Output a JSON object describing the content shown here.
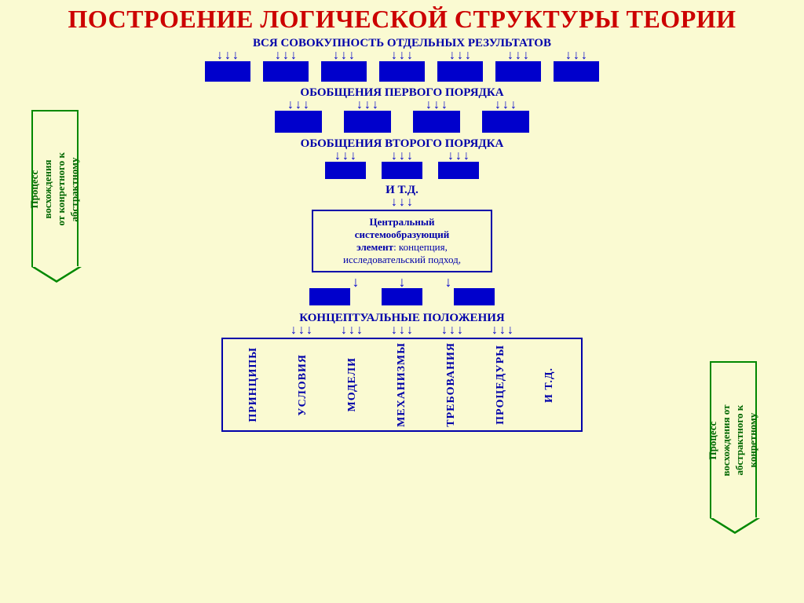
{
  "title": "ПОСТРОЕНИЕ ЛОГИЧЕСКОЙ СТРУКТУРЫ ТЕОРИИ",
  "colors": {
    "background": "#fafad2",
    "title": "#cc0000",
    "blue_text": "#0000aa",
    "blue_fill": "#0000cc",
    "green_border": "#008800",
    "green_text": "#006600"
  },
  "levels": [
    {
      "label": "ВСЯ СОВОКУПНОСТЬ ОТДЕЛЬНЫХ РЕЗУЛЬТАТОВ",
      "boxes": 7
    },
    {
      "label": "ОБОБЩЕНИЯ ПЕРВОГО ПОРЯДКА",
      "boxes": 4
    },
    {
      "label": "ОБОБЩЕНИЯ ВТОРОГО ПОРЯДКА",
      "boxes": 3
    },
    {
      "label": "И  Т.Д.",
      "boxes": 0
    }
  ],
  "central": {
    "line1": "Центральный",
    "line2": "системообразующий",
    "line3": "элемент",
    "line3_rest": ": концепция,",
    "line4": "исследовательский подход,"
  },
  "below_central_boxes": 3,
  "conceptual_label": "КОНЦЕПТУАЛЬНЫЕ ПОЛОЖЕНИЯ",
  "bottom_items": [
    "ПРИНЦИПЫ",
    "УСЛОВИЯ",
    "МОДЕЛИ",
    "МЕХАНИЗМЫ",
    "ТРЕБОВАНИЯ",
    "ПРОЦЕДУРЫ",
    "И  Т.Д."
  ],
  "left_pentagon": "Процесс восхождения\nот конретного к\nабстрактному",
  "right_pentagon": "Процесс восхождения от\nабстрактного к  конретному",
  "fonts": {
    "title_size": 32,
    "label_size": 15,
    "vertical_size": 14
  }
}
